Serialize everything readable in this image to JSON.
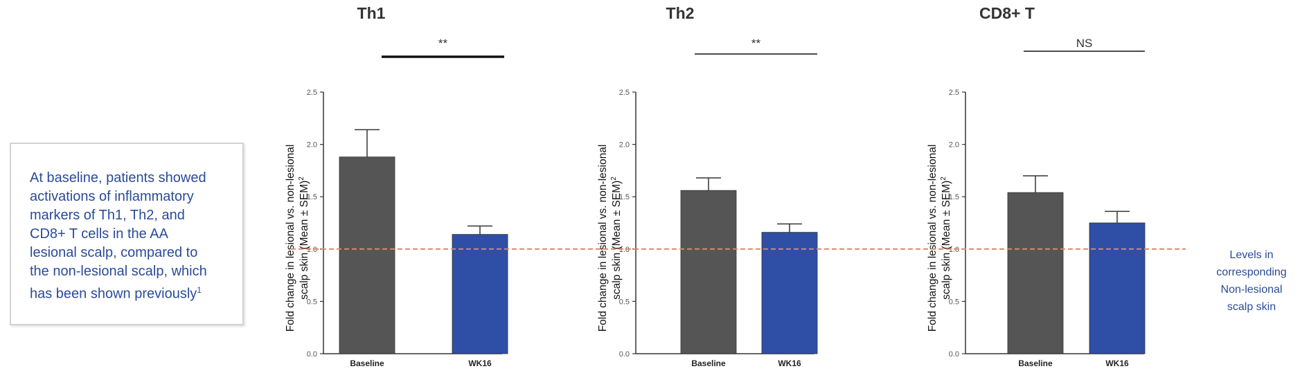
{
  "callout": {
    "text": "At baseline, patients showed\nactivations of inflammatory\nmarkers of Th1, Th2, and\nCD8+ T cells in the AA\nlesional scalp, compared to\nthe non-lesional scalp, which\nhas been shown previously",
    "footnote": "1"
  },
  "reference_note": "Levels in\ncorresponding\nNon-lesional\nscalp skin",
  "colors": {
    "baseline": "#555555",
    "wk16": "#2f4ea5",
    "reference_line": "#d9896a",
    "callout_text": "#2a4a9a"
  },
  "chart_data": [
    {
      "type": "bar",
      "title": "Th1",
      "significance": "**",
      "ylabel": "Fold change in lesional vs. non-lesional scalp skin (Mean ± SEM)",
      "ylabel_superscript": "2",
      "categories": [
        "Baseline",
        "WK16"
      ],
      "values": [
        1.88,
        1.14
      ],
      "errors": [
        0.26,
        0.08
      ],
      "ylim": [
        0,
        2.5
      ],
      "yticks": [
        "0.0",
        "0.5",
        "1.0",
        "1.5",
        "2.0",
        "2.5"
      ],
      "reference_y": 1.0
    },
    {
      "type": "bar",
      "title": "Th2",
      "significance": "**",
      "ylabel": "Fold change in lesional vs. non-lesional scalp skin (Mean ± SEM)",
      "ylabel_superscript": "2",
      "categories": [
        "Baseline",
        "WK16"
      ],
      "values": [
        1.56,
        1.16
      ],
      "errors": [
        0.12,
        0.08
      ],
      "ylim": [
        0,
        2.5
      ],
      "yticks": [
        "0.0",
        "0.5",
        "1.0",
        "1.5",
        "2.0",
        "2.5"
      ],
      "reference_y": 1.0
    },
    {
      "type": "bar",
      "title": "CD8+ T",
      "significance": "NS",
      "ylabel": "Fold change in lesional vs. non-lesional scalp skin (Mean ± SEM)",
      "ylabel_superscript": "2",
      "categories": [
        "Baseline",
        "WK16"
      ],
      "values": [
        1.54,
        1.25
      ],
      "errors": [
        0.16,
        0.11
      ],
      "ylim": [
        0,
        2.5
      ],
      "yticks": [
        "0.0",
        "0.5",
        "1.0",
        "1.5",
        "2.0",
        "2.5"
      ],
      "reference_y": 1.0
    }
  ]
}
